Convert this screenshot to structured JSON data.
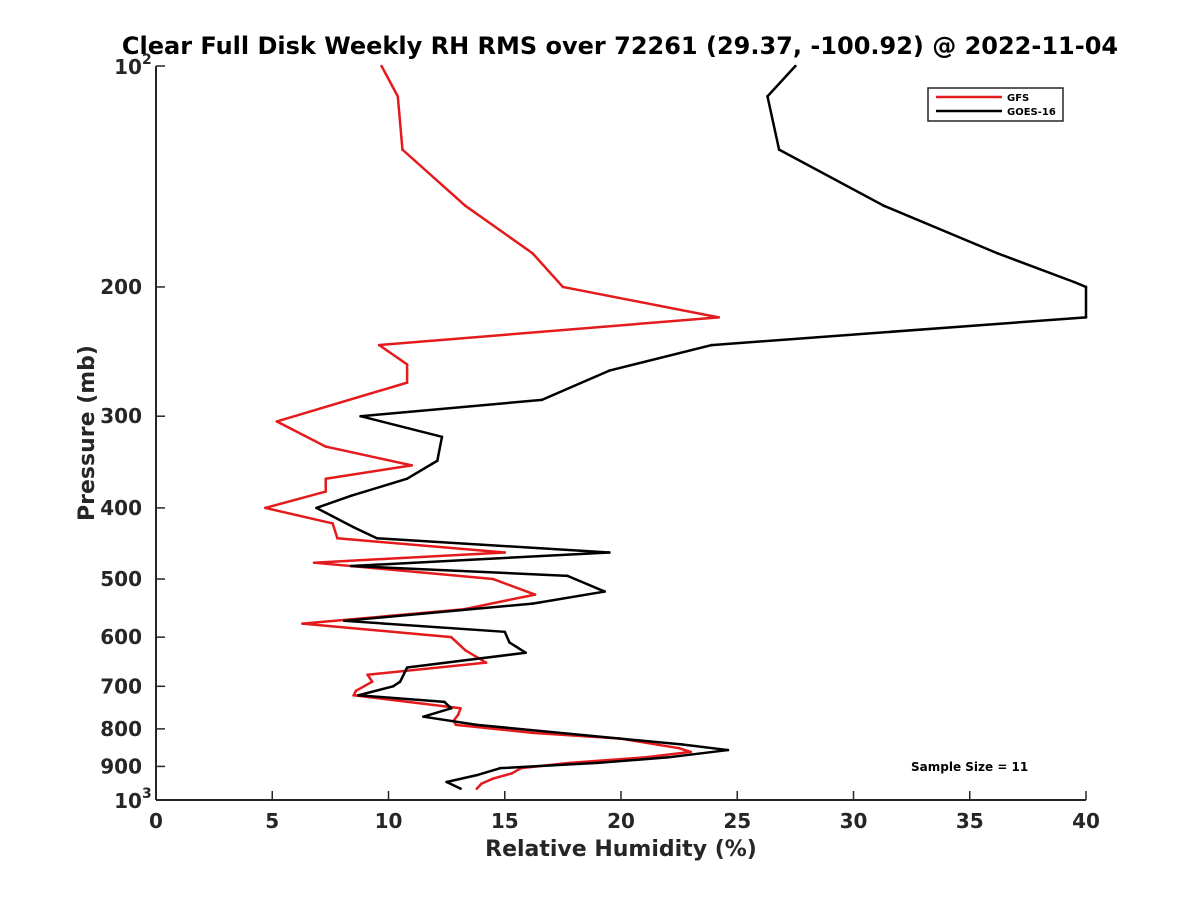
{
  "chart_data": {
    "type": "line",
    "title": "Clear Full Disk Weekly RH RMS over 72261 (29.37, -100.92) @ 2022-11-04",
    "xlabel": "Relative Humidity (%)",
    "ylabel": "Pressure (mb)",
    "xlim": [
      0,
      40
    ],
    "ylim": [
      1000,
      100
    ],
    "y_scale": "log",
    "y_reversed": true,
    "x_ticks": [
      0,
      5,
      10,
      15,
      20,
      25,
      30,
      35,
      40
    ],
    "x_tick_labels": [
      "0",
      "5",
      "10",
      "15",
      "20",
      "25",
      "30",
      "35",
      "40"
    ],
    "y_ticks": [
      100,
      200,
      300,
      400,
      500,
      600,
      700,
      800,
      900,
      1000
    ],
    "y_tick_labels": [
      "10^2",
      "200",
      "300",
      "400",
      "500",
      "600",
      "700",
      "800",
      "900",
      "10^3"
    ],
    "y_tick_base": "10",
    "y_tick_exp_top": "2",
    "y_tick_exp_bottom": "3",
    "grid": false,
    "legend_position": "top-right",
    "annotation": "Sample Size = 11",
    "series": [
      {
        "name": "GFS",
        "color": "#e41a1c",
        "x": [
          9.7,
          10.4,
          10.6,
          13.3,
          16.2,
          17.5,
          24.2,
          9.6,
          10.8,
          10.8,
          5.2,
          7.3,
          11.0,
          7.3,
          7.3,
          4.7,
          7.6,
          7.8,
          15.0,
          6.8,
          14.5,
          16.3,
          13.2,
          6.3,
          12.7,
          13.3,
          14.2,
          9.1,
          9.3,
          8.6,
          8.5,
          13.1,
          13.0,
          12.8,
          12.9,
          16.2,
          20.0,
          22.5,
          23.0,
          21.0,
          17.8,
          15.7,
          15.3,
          14.5,
          14.0,
          13.8
        ],
        "y": [
          100,
          110,
          130,
          155,
          180,
          200,
          220,
          240,
          255,
          270,
          305,
          330,
          350,
          365,
          380,
          400,
          420,
          440,
          460,
          475,
          500,
          525,
          550,
          575,
          600,
          625,
          650,
          675,
          690,
          710,
          720,
          750,
          765,
          780,
          790,
          810,
          825,
          850,
          860,
          875,
          890,
          905,
          920,
          935,
          950,
          965
        ]
      },
      {
        "name": "GOES-16",
        "color": "#000000",
        "x": [
          27.5,
          26.3,
          26.8,
          31.3,
          36.2,
          39.5,
          40.0,
          40.0,
          23.9,
          19.5,
          16.6,
          8.8,
          12.3,
          12.1,
          10.8,
          8.4,
          6.9,
          8.5,
          9.5,
          19.5,
          8.4,
          17.7,
          19.3,
          16.2,
          8.1,
          15.0,
          15.2,
          15.9,
          10.8,
          10.5,
          10.2,
          8.7,
          12.4,
          12.7,
          11.5,
          13.8,
          22.6,
          24.6,
          22.0,
          19.0,
          14.8,
          13.8,
          12.5,
          13.1
        ],
        "y": [
          100,
          110,
          130,
          155,
          180,
          197,
          200,
          220,
          240,
          260,
          285,
          300,
          320,
          345,
          365,
          385,
          400,
          425,
          440,
          460,
          480,
          495,
          520,
          540,
          570,
          590,
          610,
          630,
          660,
          690,
          700,
          720,
          735,
          750,
          770,
          790,
          840,
          855,
          875,
          890,
          905,
          925,
          945,
          965
        ]
      }
    ]
  }
}
